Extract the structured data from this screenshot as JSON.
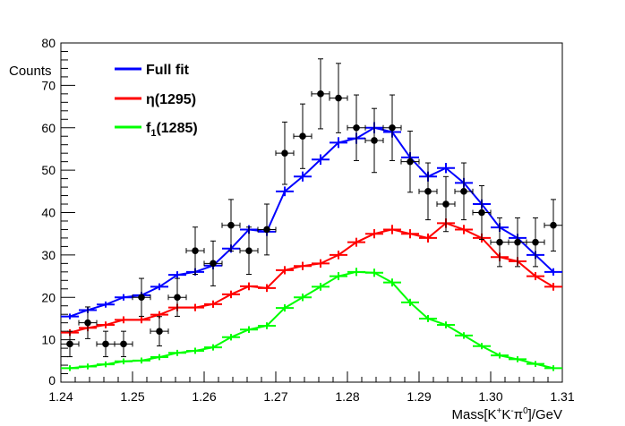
{
  "chart_data": {
    "type": "scatter",
    "title": "",
    "xlabel": "Mass[K⁺K⁻π⁰]/GeV",
    "xlabel_parts": {
      "base": "Mass[K",
      "s1": "+",
      "m1": "K",
      "s2": "-",
      "m2": "π",
      "s3": "0",
      "tail": "]/GeV"
    },
    "ylabel": "Counts",
    "xlim": [
      1.24,
      1.31
    ],
    "ylim": [
      0,
      80
    ],
    "xticks": [
      "1.24",
      "1.25",
      "1.26",
      "1.27",
      "1.28",
      "1.29",
      "1.30",
      "1.31"
    ],
    "yticks": [
      "0",
      "10",
      "20",
      "30",
      "40",
      "50",
      "60",
      "70",
      "80"
    ],
    "bin_width": 0.0025,
    "legend_placement": "top-left",
    "legend": [
      {
        "label": "Full fit",
        "color": "#0000ff"
      },
      {
        "label": "η(1295)",
        "color": "#ff0000"
      },
      {
        "label_base": "f",
        "label_sub": "1",
        "label_tail": "(1285)",
        "label": "f1(1285)",
        "color": "#00ff00"
      }
    ],
    "data": {
      "name": "Data",
      "color": "#000000",
      "values": [
        9,
        14,
        9,
        9,
        20,
        12,
        20,
        31,
        28,
        37,
        31,
        36,
        54,
        58,
        68,
        67,
        60,
        57,
        60,
        52,
        45,
        42,
        45,
        40,
        33,
        33,
        33,
        37
      ]
    },
    "series": [
      {
        "name": "Full fit",
        "color": "#0000ff",
        "values": [
          15.5,
          17,
          18.3,
          20,
          20.5,
          22.5,
          25.3,
          26,
          27.5,
          31.5,
          36,
          35.5,
          45,
          48.5,
          52.5,
          56.5,
          57.5,
          60,
          59,
          53,
          48.5,
          50.5,
          47,
          42,
          36.5,
          34,
          30,
          26
        ]
      },
      {
        "name": "η(1295)",
        "color": "#ff0000",
        "values": [
          11.7,
          12.8,
          13.5,
          14.7,
          14.7,
          15.9,
          17.6,
          17.6,
          18.4,
          20.7,
          22.6,
          22.2,
          26.4,
          27.4,
          28,
          30,
          33,
          35,
          36,
          35,
          34,
          37.5,
          36,
          34,
          29.5,
          28.5,
          25,
          22.5
        ]
      },
      {
        "name": "f1(1285)",
        "color": "#00ff00",
        "values": [
          3.3,
          3.7,
          4.2,
          4.9,
          5.1,
          5.9,
          6.9,
          7.4,
          8.2,
          10.6,
          12.4,
          13.3,
          17.5,
          20,
          22.5,
          25,
          26,
          25.8,
          23.5,
          18.8,
          15,
          13.5,
          11,
          8.5,
          6.3,
          5.4,
          4.3,
          3.3
        ]
      }
    ]
  }
}
